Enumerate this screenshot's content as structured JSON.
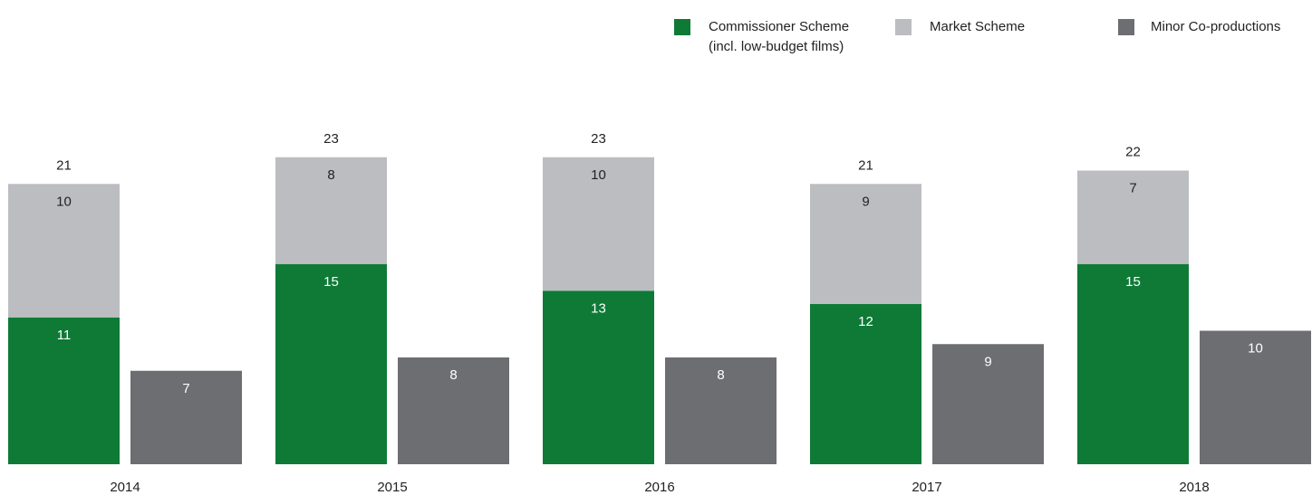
{
  "chart_data": {
    "type": "bar",
    "categories": [
      "2014",
      "2015",
      "2016",
      "2017",
      "2018"
    ],
    "stack_totals": [
      21,
      23,
      23,
      21,
      22
    ],
    "series": [
      {
        "name": "Commissioner Scheme (incl. low-budget films)",
        "values": [
          11,
          15,
          13,
          12,
          15
        ],
        "color": "#0e7a36",
        "stack": "main"
      },
      {
        "name": "Market Scheme",
        "values": [
          10,
          8,
          10,
          9,
          7
        ],
        "color": "#bcbdc0",
        "stack": "main"
      },
      {
        "name": "Minor Co-productions",
        "values": [
          7,
          8,
          8,
          9,
          10
        ],
        "color": "#6d6e71",
        "stack": "minor"
      }
    ],
    "legend": {
      "position": "top-right",
      "items": [
        {
          "label": "Commissioner Scheme",
          "sublabel": "(incl. low-budget films)",
          "color": "#0e7a36"
        },
        {
          "label": "Market Scheme",
          "sublabel": "",
          "color": "#bcbdc0"
        },
        {
          "label": "Minor Co-productions",
          "sublabel": "",
          "color": "#6d6e71"
        }
      ]
    },
    "title": "",
    "xlabel": "",
    "ylabel": "",
    "ylim": [
      0,
      23
    ],
    "grid": false,
    "label_color_dark": "#222222",
    "label_color_light": "#ffffff"
  }
}
